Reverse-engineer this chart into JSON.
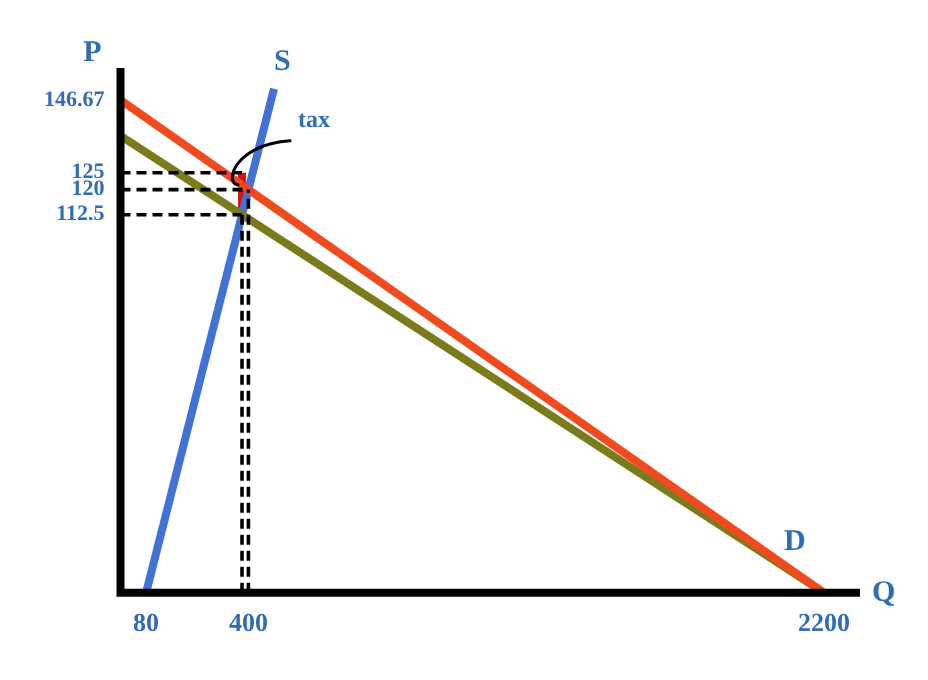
{
  "chart_data": {
    "type": "line",
    "xlabel": "Q",
    "ylabel": "P",
    "xlim": [
      0,
      2300
    ],
    "ylim": [
      0,
      155
    ],
    "xticks": [
      80,
      400,
      2200
    ],
    "yticks": [
      112.5,
      120,
      125,
      146.67
    ],
    "marker": "none",
    "annotations": [
      {
        "text": "tax",
        "x": 380,
        "y": 125
      }
    ],
    "series": [
      {
        "name": "D",
        "color": "#f04a1e",
        "x": [
          0,
          2200
        ],
        "values": [
          146.67,
          0
        ]
      },
      {
        "color": "#7b7b1c",
        "x": [
          0,
          2200
        ],
        "values": [
          136,
          0
        ]
      },
      {
        "name": "S",
        "color": "#4272d6",
        "x": [
          80,
          480
        ],
        "values": [
          0,
          150
        ]
      },
      {
        "color": "#d41414",
        "x": [
          380,
          380
        ],
        "values": [
          112.5,
          125
        ]
      },
      {
        "color": "#000000",
        "line_style": "dashed",
        "x": [
          0,
          380
        ],
        "values": [
          125,
          125
        ]
      },
      {
        "color": "#000000",
        "line_style": "dashed",
        "x": [
          0,
          400
        ],
        "values": [
          120,
          120
        ]
      },
      {
        "color": "#000000",
        "line_style": "dashed",
        "x": [
          0,
          380
        ],
        "values": [
          112.5,
          112.5
        ]
      },
      {
        "color": "#000000",
        "line_style": "dashed",
        "x": [
          380,
          380
        ],
        "values": [
          0,
          112.5
        ]
      },
      {
        "color": "#000000",
        "line_style": "dashed",
        "x": [
          400,
          400
        ],
        "values": [
          0,
          120
        ]
      }
    ]
  }
}
